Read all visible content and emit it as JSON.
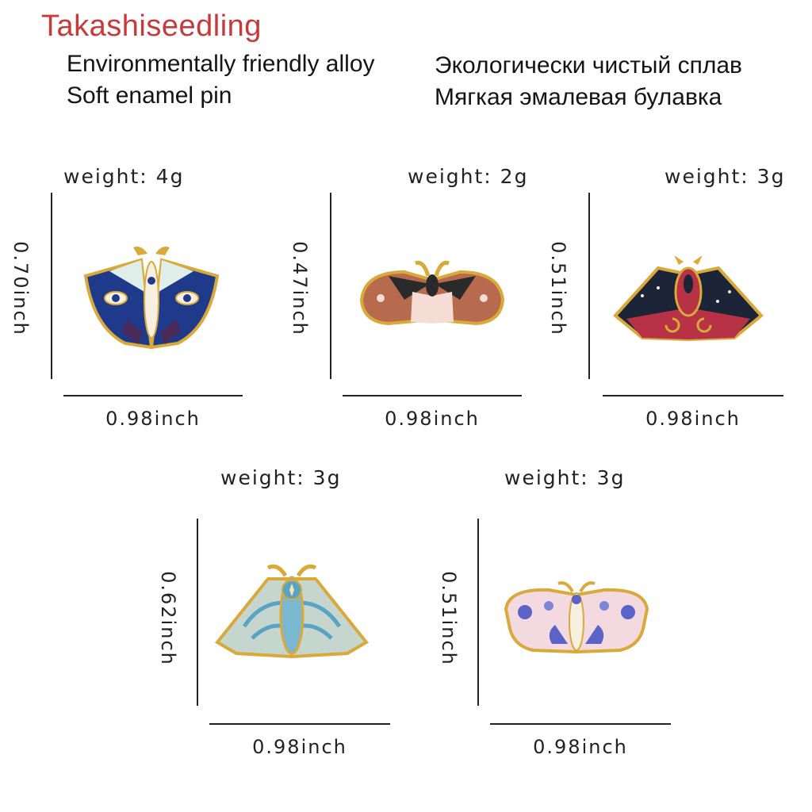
{
  "brand": "Takashiseedling",
  "features": {
    "en_line1": "Environmentally friendly alloy",
    "en_line2": "Soft enamel pin",
    "ru_line1": "Экологически чистый сплав",
    "ru_line2": "Мягкая эмалевая булавка"
  },
  "colors": {
    "brand": "#c63a3a",
    "gold": "#d9a93a",
    "navy": "#1f3a8a",
    "terracotta": "#b86a4e",
    "crimson": "#b83246",
    "sage": "#c5d6cf",
    "blush": "#f3d9e0"
  },
  "products": [
    {
      "weight": "weight:  4g",
      "height": "0.70inch",
      "width": "0.98inch",
      "icon": "navy-eye-moth-pin-icon"
    },
    {
      "weight": "weight:  2g",
      "height": "0.47inch",
      "width": "0.98inch",
      "icon": "terracotta-moth-pin-icon"
    },
    {
      "weight": "weight:  3g",
      "height": "0.51inch",
      "width": "0.98inch",
      "icon": "crimson-starry-moth-pin-icon"
    },
    {
      "weight": "weight:  3g",
      "height": "0.62inch",
      "width": "0.98inch",
      "icon": "sage-leaf-moth-pin-icon"
    },
    {
      "weight": "weight:  3g",
      "height": "0.51inch",
      "width": "0.98inch",
      "icon": "pink-moon-moth-pin-icon"
    }
  ]
}
